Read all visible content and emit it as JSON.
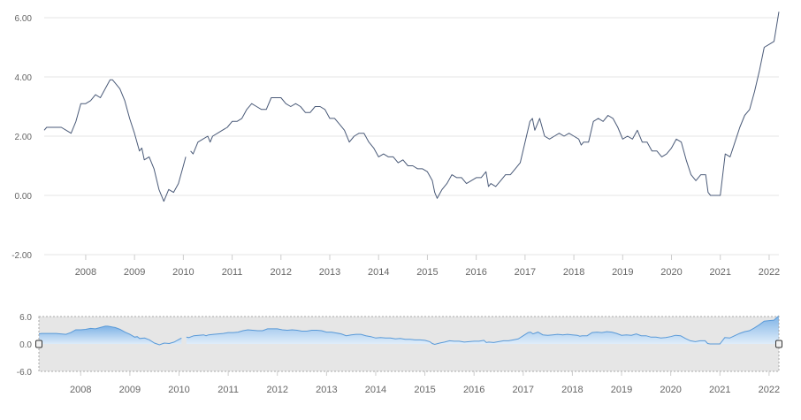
{
  "colors": {
    "line": "#4a5a78",
    "grid": "#e6e6e6",
    "nav_fill_top": "#7fb3e6",
    "nav_fill_bottom": "#e1eefa",
    "nav_stroke": "#5a9ad8",
    "nav_bg": "#e6e6e6",
    "text": "#666666"
  },
  "chart_data": [
    {
      "type": "line",
      "title": "",
      "xlabel": "",
      "ylabel": "",
      "xlim": [
        2007.15,
        2022.2
      ],
      "ylim": [
        -2,
        6
      ],
      "grid": true,
      "x_ticks": [
        "2008",
        "2009",
        "2010",
        "2011",
        "2012",
        "2013",
        "2014",
        "2015",
        "2016",
        "2017",
        "2018",
        "2019",
        "2020",
        "2021",
        "2022"
      ],
      "y_ticks": [
        "6.00",
        "4.00",
        "2.00",
        "0.00",
        "-2.00"
      ],
      "series": [
        {
          "segments": [
            [
              [
                2007.15,
                2.2
              ],
              [
                2007.2,
                2.3
              ],
              [
                2007.4,
                2.3
              ],
              [
                2007.5,
                2.3
              ],
              [
                2007.6,
                2.2
              ],
              [
                2007.7,
                2.1
              ],
              [
                2007.8,
                2.5
              ],
              [
                2007.9,
                3.1
              ],
              [
                2008.0,
                3.1
              ],
              [
                2008.1,
                3.2
              ],
              [
                2008.2,
                3.4
              ],
              [
                2008.3,
                3.3
              ],
              [
                2008.4,
                3.6
              ],
              [
                2008.5,
                3.9
              ],
              [
                2008.55,
                3.9
              ],
              [
                2008.6,
                3.8
              ],
              [
                2008.7,
                3.6
              ],
              [
                2008.8,
                3.2
              ],
              [
                2008.9,
                2.6
              ],
              [
                2009.0,
                2.1
              ],
              [
                2009.1,
                1.5
              ],
              [
                2009.15,
                1.6
              ],
              [
                2009.2,
                1.2
              ],
              [
                2009.3,
                1.3
              ],
              [
                2009.4,
                0.9
              ],
              [
                2009.5,
                0.2
              ],
              [
                2009.6,
                -0.2
              ],
              [
                2009.7,
                0.2
              ],
              [
                2009.8,
                0.1
              ],
              [
                2009.9,
                0.4
              ],
              [
                2010.0,
                1.0
              ],
              [
                2010.05,
                1.3
              ]
            ],
            [
              [
                2010.15,
                1.5
              ],
              [
                2010.2,
                1.4
              ],
              [
                2010.3,
                1.8
              ],
              [
                2010.4,
                1.9
              ],
              [
                2010.5,
                2.0
              ],
              [
                2010.55,
                1.8
              ],
              [
                2010.6,
                2.0
              ],
              [
                2010.7,
                2.1
              ],
              [
                2010.8,
                2.2
              ],
              [
                2010.9,
                2.3
              ],
              [
                2011.0,
                2.5
              ],
              [
                2011.1,
                2.5
              ],
              [
                2011.2,
                2.6
              ],
              [
                2011.3,
                2.9
              ],
              [
                2011.4,
                3.1
              ],
              [
                2011.5,
                3.0
              ],
              [
                2011.6,
                2.9
              ],
              [
                2011.7,
                2.9
              ],
              [
                2011.8,
                3.3
              ],
              [
                2011.9,
                3.3
              ],
              [
                2012.0,
                3.3
              ],
              [
                2012.1,
                3.1
              ],
              [
                2012.2,
                3.0
              ],
              [
                2012.3,
                3.1
              ],
              [
                2012.4,
                3.0
              ],
              [
                2012.5,
                2.8
              ],
              [
                2012.6,
                2.8
              ],
              [
                2012.7,
                3.0
              ],
              [
                2012.8,
                3.0
              ],
              [
                2012.9,
                2.9
              ],
              [
                2013.0,
                2.6
              ],
              [
                2013.1,
                2.6
              ],
              [
                2013.2,
                2.4
              ],
              [
                2013.3,
                2.2
              ],
              [
                2013.4,
                1.8
              ],
              [
                2013.5,
                2.0
              ],
              [
                2013.6,
                2.1
              ],
              [
                2013.7,
                2.1
              ],
              [
                2013.8,
                1.8
              ],
              [
                2013.9,
                1.6
              ],
              [
                2014.0,
                1.3
              ],
              [
                2014.1,
                1.4
              ],
              [
                2014.2,
                1.3
              ],
              [
                2014.3,
                1.3
              ],
              [
                2014.4,
                1.1
              ],
              [
                2014.5,
                1.2
              ],
              [
                2014.6,
                1.0
              ],
              [
                2014.7,
                1.0
              ],
              [
                2014.8,
                0.9
              ],
              [
                2014.9,
                0.9
              ],
              [
                2015.0,
                0.8
              ],
              [
                2015.1,
                0.5
              ],
              [
                2015.15,
                0.1
              ],
              [
                2015.2,
                -0.1
              ],
              [
                2015.3,
                0.2
              ],
              [
                2015.4,
                0.4
              ],
              [
                2015.5,
                0.7
              ],
              [
                2015.6,
                0.6
              ],
              [
                2015.7,
                0.6
              ],
              [
                2015.8,
                0.4
              ],
              [
                2015.9,
                0.5
              ],
              [
                2016.0,
                0.6
              ],
              [
                2016.1,
                0.6
              ],
              [
                2016.2,
                0.8
              ],
              [
                2016.25,
                0.3
              ],
              [
                2016.3,
                0.4
              ],
              [
                2016.4,
                0.3
              ],
              [
                2016.5,
                0.5
              ],
              [
                2016.6,
                0.7
              ],
              [
                2016.7,
                0.7
              ],
              [
                2016.8,
                0.9
              ],
              [
                2016.9,
                1.1
              ],
              [
                2017.0,
                1.8
              ],
              [
                2017.1,
                2.5
              ],
              [
                2017.15,
                2.6
              ],
              [
                2017.2,
                2.2
              ],
              [
                2017.3,
                2.6
              ],
              [
                2017.4,
                2.0
              ],
              [
                2017.5,
                1.9
              ],
              [
                2017.6,
                2.0
              ],
              [
                2017.7,
                2.1
              ],
              [
                2017.8,
                2.0
              ],
              [
                2017.9,
                2.1
              ],
              [
                2018.0,
                2.0
              ],
              [
                2018.1,
                1.9
              ],
              [
                2018.15,
                1.7
              ],
              [
                2018.2,
                1.8
              ],
              [
                2018.3,
                1.8
              ],
              [
                2018.4,
                2.5
              ],
              [
                2018.5,
                2.6
              ],
              [
                2018.6,
                2.5
              ],
              [
                2018.7,
                2.7
              ],
              [
                2018.8,
                2.6
              ],
              [
                2018.9,
                2.3
              ],
              [
                2019.0,
                1.9
              ],
              [
                2019.1,
                2.0
              ],
              [
                2019.2,
                1.9
              ],
              [
                2019.3,
                2.2
              ],
              [
                2019.4,
                1.8
              ],
              [
                2019.5,
                1.8
              ],
              [
                2019.6,
                1.5
              ],
              [
                2019.7,
                1.5
              ],
              [
                2019.8,
                1.3
              ],
              [
                2019.9,
                1.4
              ],
              [
                2020.0,
                1.6
              ],
              [
                2020.1,
                1.9
              ],
              [
                2020.2,
                1.8
              ],
              [
                2020.3,
                1.2
              ],
              [
                2020.4,
                0.7
              ],
              [
                2020.5,
                0.5
              ],
              [
                2020.6,
                0.7
              ],
              [
                2020.7,
                0.7
              ],
              [
                2020.75,
                0.1
              ],
              [
                2020.8,
                0.0
              ],
              [
                2020.9,
                0.0
              ],
              [
                2021.0,
                0.0
              ],
              [
                2021.1,
                1.4
              ],
              [
                2021.2,
                1.3
              ],
              [
                2021.3,
                1.8
              ],
              [
                2021.4,
                2.3
              ],
              [
                2021.5,
                2.7
              ],
              [
                2021.6,
                2.9
              ],
              [
                2021.7,
                3.5
              ],
              [
                2021.8,
                4.2
              ],
              [
                2021.9,
                5.0
              ],
              [
                2022.0,
                5.1
              ],
              [
                2022.1,
                5.2
              ],
              [
                2022.2,
                6.2
              ]
            ]
          ]
        }
      ]
    },
    {
      "type": "area",
      "title": "",
      "xlim": [
        2007.15,
        2022.2
      ],
      "ylim": [
        -6,
        6
      ],
      "x_ticks": [
        "2008",
        "2009",
        "2010",
        "2011",
        "2012",
        "2013",
        "2014",
        "2015",
        "2016",
        "2017",
        "2018",
        "2019",
        "2020",
        "2021",
        "2022"
      ],
      "y_ticks": [
        "6.0",
        "0.0",
        "-6.0"
      ]
    }
  ]
}
